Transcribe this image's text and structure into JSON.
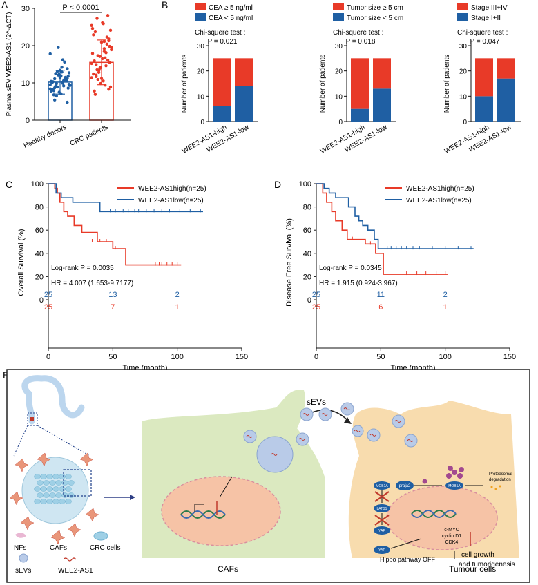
{
  "chart_data": [
    {
      "panel": "A",
      "type": "bar",
      "ylabel": "Plasma sEV WEE2-AS1 (2^-ΔCT)",
      "categories": [
        "Healthy donors",
        "CRC patients"
      ],
      "values": [
        10.2,
        15.5
      ],
      "sd": [
        3.2,
        6.0
      ],
      "ylim": [
        0,
        30
      ],
      "yticks": [
        0,
        10,
        20,
        30
      ],
      "points": [
        [
          9.5,
          10.1,
          8.7,
          11.2,
          12.3,
          7.8,
          10.6,
          9.1,
          11.8,
          13.4,
          8.2,
          10.9,
          9.8,
          12.7,
          7.1,
          10.3,
          11.5,
          8.9,
          9.4,
          14.2,
          6.8,
          10.7,
          12.1,
          8.4,
          9.9,
          11.1,
          13.8,
          7.5,
          10.4,
          9.2,
          12.5,
          8.6,
          11.4,
          10.0,
          15.6,
          6.5,
          9.6,
          11.9,
          8.1,
          10.8,
          13.1,
          9.3,
          12.9,
          7.9,
          10.5,
          19.5,
          17.8,
          16.2,
          5.4,
          4.8
        ],
        [
          15.2,
          18.4,
          12.1,
          21.3,
          9.8,
          24.6,
          16.7,
          13.5,
          19.8,
          11.2,
          22.9,
          14.6,
          17.3,
          8.9,
          26.1,
          15.9,
          20.4,
          12.8,
          18.9,
          10.5,
          23.7,
          16.1,
          13.9,
          25.4,
          19.2,
          11.7,
          21.8,
          14.2,
          17.9,
          9.4,
          27.3,
          15.5,
          20.9,
          12.4,
          18.1,
          10.9,
          24.1,
          16.5,
          7.8,
          22.3,
          13.3,
          19.5,
          25.9,
          6.9,
          28.1,
          17.1,
          11.4,
          21.1,
          14.9,
          8.3
        ]
      ],
      "annotation": "P < 0.0001",
      "colors": [
        "#1f5fa3",
        "#e83a28"
      ]
    },
    {
      "panel": "B1",
      "type": "bar",
      "stacked": true,
      "ylabel": "Number of patients",
      "categories": [
        "WEE2-AS1-high",
        "WEE2-AS1-low"
      ],
      "series": [
        {
          "name": "CEA < 5 ng/ml",
          "values": [
            6,
            14
          ]
        },
        {
          "name": "CEA ≥ 5 ng/ml",
          "values": [
            19,
            11
          ]
        }
      ],
      "ylim": [
        0,
        30
      ],
      "yticks": [
        0,
        10,
        20,
        30
      ],
      "test": "Chi-squere test :",
      "p": "P = 0.021"
    },
    {
      "panel": "B2",
      "type": "bar",
      "stacked": true,
      "ylabel": "Number of patients",
      "categories": [
        "WEE2-AS1-high",
        "WEE2-AS1-low"
      ],
      "series": [
        {
          "name": "Tumor size < 5 cm",
          "values": [
            5,
            13
          ]
        },
        {
          "name": "Tumor size ≥ 5 cm",
          "values": [
            20,
            12
          ]
        }
      ],
      "ylim": [
        0,
        30
      ],
      "yticks": [
        0,
        10,
        20,
        30
      ],
      "test": "Chi-squere test :",
      "p": "P = 0.018"
    },
    {
      "panel": "B3",
      "type": "bar",
      "stacked": true,
      "ylabel": "Number of patients",
      "categories": [
        "WEE2-AS1-high",
        "WEE2-AS1-low"
      ],
      "series": [
        {
          "name": "Stage I+II",
          "values": [
            10,
            17
          ]
        },
        {
          "name": "Stage III+IV",
          "values": [
            15,
            8
          ]
        }
      ],
      "ylim": [
        0,
        30
      ],
      "yticks": [
        0,
        10,
        20,
        30
      ],
      "test": "Chi-squere test :",
      "p": "P = 0.047"
    },
    {
      "panel": "C",
      "type": "line",
      "step": true,
      "xlabel": "Time (month)",
      "ylabel": "Overall Survival (%)",
      "xlim": [
        0,
        150
      ],
      "ylim": [
        0,
        100
      ],
      "xticks": [
        0,
        50,
        100,
        150
      ],
      "yticks": [
        0,
        20,
        40,
        60,
        80,
        100
      ],
      "series": [
        {
          "name": "WEE2-AS1high(n=25)",
          "color": "#e83a28",
          "x": [
            0,
            5,
            7,
            9,
            12,
            15,
            20,
            26,
            38,
            50,
            60,
            103
          ],
          "y": [
            100,
            96,
            92,
            84,
            76,
            72,
            64,
            58,
            50,
            44,
            30,
            30
          ],
          "censor": [
            [
              34,
              50
            ],
            [
              40,
              50
            ],
            [
              45,
              50
            ],
            [
              52,
              44
            ],
            [
              83,
              30
            ],
            [
              86,
              30
            ],
            [
              88,
              30
            ],
            [
              92,
              30
            ],
            [
              96,
              30
            ],
            [
              100,
              30
            ]
          ]
        },
        {
          "name": "WEE2-AS1low(n=25)",
          "color": "#1f5fa3",
          "x": [
            0,
            6,
            10,
            19,
            40,
            120
          ],
          "y": [
            100,
            92,
            88,
            84,
            76,
            76
          ],
          "censor": [
            [
              48,
              76
            ],
            [
              52,
              76
            ],
            [
              58,
              76
            ],
            [
              62,
              76
            ],
            [
              67,
              76
            ],
            [
              70,
              76
            ],
            [
              76,
              76
            ],
            [
              82,
              76
            ],
            [
              88,
              76
            ],
            [
              94,
              76
            ],
            [
              102,
              76
            ],
            [
              110,
              76
            ],
            [
              118,
              76
            ]
          ]
        }
      ],
      "logrank": "Log-rank P = 0.0035",
      "hr": "HR = 4.007 (1.653-9.7177)",
      "at_risk": {
        "high": [
          "25",
          "7",
          "1"
        ],
        "low": [
          "25",
          "13",
          "2"
        ]
      }
    },
    {
      "panel": "D",
      "type": "line",
      "step": true,
      "xlabel": "Time (month)",
      "ylabel": "Disease Free Survival (%)",
      "xlim": [
        0,
        150
      ],
      "ylim": [
        0,
        100
      ],
      "xticks": [
        0,
        50,
        100,
        150
      ],
      "yticks": [
        0,
        20,
        40,
        60,
        80,
        100
      ],
      "series": [
        {
          "name": "WEE2-AS1high(n=25)",
          "color": "#e83a28",
          "x": [
            0,
            5,
            8,
            12,
            15,
            20,
            24,
            38,
            46,
            52,
            102
          ],
          "y": [
            100,
            92,
            84,
            76,
            68,
            60,
            52,
            48,
            40,
            22,
            22
          ],
          "censor": [
            [
              28,
              52
            ],
            [
              42,
              48
            ],
            [
              70,
              22
            ],
            [
              78,
              22
            ],
            [
              85,
              22
            ],
            [
              93,
              22
            ],
            [
              100,
              22
            ]
          ]
        },
        {
          "name": "WEE2-AS1low(n=25)",
          "color": "#1f5fa3",
          "x": [
            0,
            6,
            10,
            15,
            25,
            30,
            33,
            36,
            40,
            45,
            48,
            122
          ],
          "y": [
            100,
            96,
            92,
            88,
            80,
            72,
            68,
            64,
            60,
            52,
            44,
            44
          ],
          "censor": [
            [
              55,
              44
            ],
            [
              58,
              44
            ],
            [
              62,
              44
            ],
            [
              66,
              44
            ],
            [
              70,
              44
            ],
            [
              75,
              44
            ],
            [
              80,
              44
            ],
            [
              90,
              44
            ],
            [
              100,
              44
            ],
            [
              110,
              44
            ],
            [
              120,
              44
            ]
          ]
        }
      ],
      "logrank": "Log-rank P = 0.0345",
      "hr": "HR = 1.915 (0.924-3.967)",
      "at_risk": {
        "high": [
          "25",
          "6",
          "1"
        ],
        "low": [
          "25",
          "11",
          "2"
        ]
      }
    }
  ],
  "labels": {
    "panelA": "A",
    "panelB": "B",
    "panelC": "C",
    "panelD": "D",
    "panelE": "E"
  },
  "diagram": {
    "sevs_title": "sEVs",
    "cafs_label": "CAFs",
    "tumour_label": "Tumour cells",
    "legend": {
      "nfs": "NFs",
      "cafs": "CAFs",
      "crc": "CRC cells",
      "sevs": "sEVs",
      "wee2": "WEE2-AS1"
    },
    "mob1a": "MOB1A",
    "prajа2": "praja2",
    "ub": "Ub",
    "proteasomal": "Proteasomal",
    "degradation": "degradation",
    "lats1": "LATS1",
    "yap": "YAP",
    "p": "P",
    "genes": [
      "c-MYC",
      "cyclin D1",
      "CDK4"
    ],
    "growth1": "cell growth",
    "growth2": "and tumorigenesis",
    "hippo": "Hippo pathway OFF"
  },
  "colors": {
    "red": "#e83a28",
    "blue": "#1f5fa3",
    "caf_bg": "#dbe9c0",
    "tumour_bg": "#f8dcae",
    "nucleus": "#f6c3a6",
    "vesicle": "#b9cbe8"
  }
}
